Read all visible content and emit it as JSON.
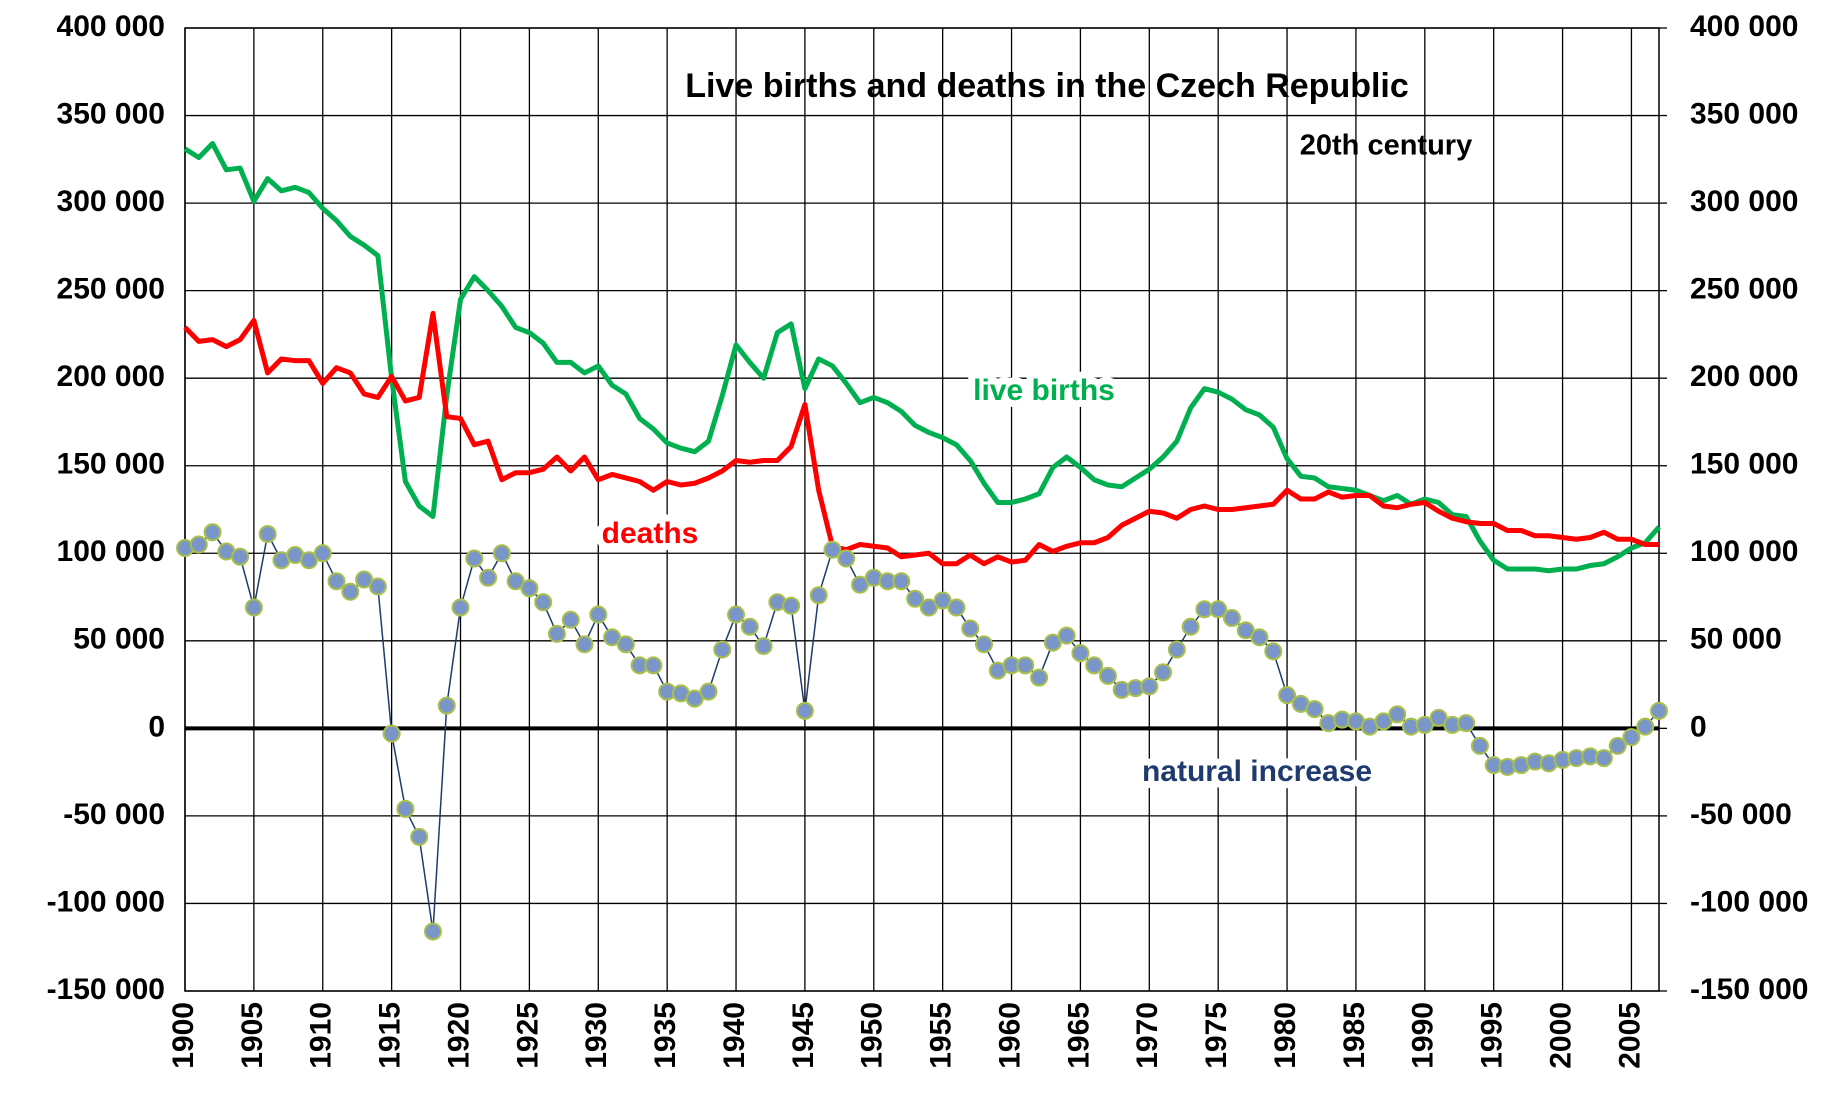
{
  "chart_data": {
    "type": "line",
    "title": "Live births and deaths in the Czech Republic",
    "subtitle": "20th century",
    "x": [
      1900,
      1901,
      1902,
      1903,
      1904,
      1905,
      1906,
      1907,
      1908,
      1909,
      1910,
      1911,
      1912,
      1913,
      1914,
      1915,
      1916,
      1917,
      1918,
      1919,
      1920,
      1921,
      1922,
      1923,
      1924,
      1925,
      1926,
      1927,
      1928,
      1929,
      1930,
      1931,
      1932,
      1933,
      1934,
      1935,
      1936,
      1937,
      1938,
      1939,
      1940,
      1941,
      1942,
      1943,
      1944,
      1945,
      1946,
      1947,
      1948,
      1949,
      1950,
      1951,
      1952,
      1953,
      1954,
      1955,
      1956,
      1957,
      1958,
      1959,
      1960,
      1961,
      1962,
      1963,
      1964,
      1965,
      1966,
      1967,
      1968,
      1969,
      1970,
      1971,
      1972,
      1973,
      1974,
      1975,
      1976,
      1977,
      1978,
      1979,
      1980,
      1981,
      1982,
      1983,
      1984,
      1985,
      1986,
      1987,
      1988,
      1989,
      1990,
      1991,
      1992,
      1993,
      1994,
      1995,
      1996,
      1997,
      1998,
      1999,
      2000,
      2001,
      2002,
      2003,
      2004,
      2005,
      2006,
      2007
    ],
    "series": [
      {
        "name": "live births",
        "color": "#00b050",
        "values": [
          331000,
          326000,
          334000,
          319000,
          320000,
          301000,
          314000,
          307000,
          309000,
          306000,
          297000,
          290000,
          281000,
          276000,
          270000,
          200000,
          141000,
          127000,
          121000,
          190000,
          245000,
          258000,
          250000,
          241000,
          229000,
          226000,
          220000,
          209000,
          209000,
          203000,
          207000,
          196000,
          191000,
          177000,
          171000,
          163000,
          160000,
          158000,
          164000,
          190000,
          219000,
          209000,
          200000,
          226000,
          231000,
          194000,
          211000,
          207000,
          197000,
          186000,
          189000,
          186000,
          181000,
          173000,
          169000,
          166000,
          162000,
          153000,
          140000,
          129000,
          129000,
          131000,
          134000,
          149000,
          155000,
          149000,
          142000,
          139000,
          138000,
          143000,
          148000,
          155000,
          164000,
          183000,
          194000,
          192000,
          188000,
          182000,
          179000,
          172000,
          154000,
          144000,
          143000,
          138000,
          137000,
          136000,
          133000,
          130000,
          133000,
          128000,
          131000,
          129000,
          122000,
          121000,
          107000,
          96000,
          91000,
          91000,
          91000,
          90000,
          91000,
          91000,
          93000,
          94000,
          98000,
          103000,
          106000,
          115000
        ]
      },
      {
        "name": "deaths",
        "color": "#ff0000",
        "values": [
          229000,
          221000,
          222000,
          218000,
          222000,
          233000,
          203000,
          211000,
          210000,
          210000,
          197000,
          206000,
          203000,
          191000,
          189000,
          201000,
          187000,
          189000,
          237000,
          178000,
          177000,
          162000,
          164000,
          142000,
          146000,
          146000,
          148000,
          155000,
          147000,
          155000,
          142000,
          145000,
          143000,
          141000,
          136000,
          141000,
          139000,
          140000,
          143000,
          147000,
          153000,
          152000,
          153000,
          153000,
          161000,
          185000,
          136000,
          104000,
          102000,
          105000,
          104000,
          103000,
          98000,
          99000,
          100000,
          94000,
          94000,
          99000,
          94000,
          98000,
          95000,
          96000,
          105000,
          101000,
          104000,
          106000,
          106000,
          109000,
          116000,
          120000,
          124000,
          123000,
          120000,
          125000,
          127000,
          125000,
          125000,
          126000,
          127000,
          128000,
          136000,
          131000,
          131000,
          135000,
          132000,
          133000,
          133000,
          127000,
          126000,
          128000,
          129000,
          124000,
          120000,
          118000,
          117000,
          117000,
          113000,
          113000,
          110000,
          110000,
          109000,
          108000,
          109000,
          112000,
          108000,
          108000,
          105000,
          105000
        ]
      },
      {
        "name": "natural increase",
        "color": "#1f3a6e",
        "marker_color": "#7a96c8",
        "marker_edge": "#a8c04a",
        "values": [
          103000,
          105000,
          112000,
          101000,
          98000,
          69000,
          111000,
          96000,
          99000,
          96000,
          100000,
          84000,
          78000,
          85000,
          81000,
          -3000,
          -46000,
          -62000,
          -116000,
          13000,
          69000,
          97000,
          86000,
          100000,
          84000,
          80000,
          72000,
          54000,
          62000,
          48000,
          65000,
          52000,
          48000,
          36000,
          36000,
          21000,
          20000,
          17000,
          21000,
          45000,
          65000,
          58000,
          47000,
          72000,
          70000,
          10000,
          76000,
          102000,
          97000,
          82000,
          86000,
          84000,
          84000,
          74000,
          69000,
          73000,
          69000,
          57000,
          48000,
          33000,
          36000,
          36000,
          29000,
          49000,
          53000,
          43000,
          36000,
          30000,
          22000,
          23000,
          24000,
          32000,
          45000,
          58000,
          68000,
          68000,
          63000,
          56000,
          52000,
          44000,
          19000,
          14000,
          11000,
          3000,
          5000,
          4000,
          1000,
          4000,
          8000,
          1000,
          2000,
          6000,
          2000,
          3000,
          -10000,
          -21000,
          -22000,
          -21000,
          -19000,
          -20000,
          -18000,
          -17000,
          -16000,
          -17000,
          -10000,
          -5000,
          1000,
          10000
        ]
      }
    ],
    "xlim": [
      1900,
      2007
    ],
    "xticks": [
      1900,
      1905,
      1910,
      1915,
      1920,
      1925,
      1930,
      1935,
      1940,
      1945,
      1950,
      1955,
      1960,
      1965,
      1970,
      1975,
      1980,
      1985,
      1990,
      1995,
      2000,
      2005
    ],
    "ylim": [
      -150000,
      400000
    ],
    "yticks": [
      {
        "value": -150000,
        "label": "-150 000"
      },
      {
        "value": -100000,
        "label": "-100 000"
      },
      {
        "value": -50000,
        "label": "-50 000"
      },
      0,
      {
        "value": 50000,
        "label": "50 000"
      },
      {
        "value": 100000,
        "label": "100 000"
      },
      {
        "value": 150000,
        "label": "150 000"
      },
      {
        "value": 200000,
        "label": "200 000"
      },
      {
        "value": 250000,
        "label": "250 000"
      },
      {
        "value": 300000,
        "label": "300 000"
      },
      {
        "value": 350000,
        "label": "350 000"
      },
      {
        "value": 400000,
        "label": "400 000"
      }
    ],
    "y2lim": [
      -150000,
      400000
    ],
    "y2ticks": [
      {
        "value": -150000,
        "label": "-150 000"
      },
      {
        "value": -100000,
        "label": "-100 000"
      },
      {
        "value": -50000,
        "label": "-50 000"
      },
      0,
      {
        "value": 50000,
        "label": "50 000"
      },
      {
        "value": 100000,
        "label": "100 000"
      },
      {
        "value": 150000,
        "label": "150 000"
      },
      {
        "value": 200000,
        "label": "200 000"
      },
      {
        "value": 250000,
        "label": "250 000"
      },
      {
        "value": 300000,
        "label": "300 000"
      },
      {
        "value": 350000,
        "label": "350 000"
      },
      {
        "value": 400000,
        "label": "400 000"
      }
    ],
    "grid": true
  }
}
